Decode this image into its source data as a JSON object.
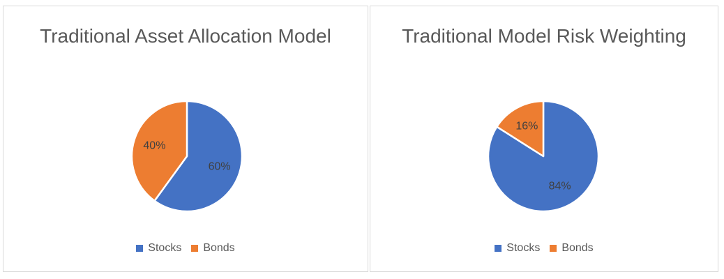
{
  "chart_data": [
    {
      "type": "pie",
      "title": "Traditional Asset Allocation Model",
      "categories": [
        "Stocks",
        "Bonds"
      ],
      "values": [
        60,
        40
      ],
      "data_labels": [
        "60%",
        "40%"
      ],
      "colors": [
        "#4472C4",
        "#ED7D31"
      ],
      "legend": "bottom"
    },
    {
      "type": "pie",
      "title": "Traditional Model Risk Weighting",
      "categories": [
        "Stocks",
        "Bonds"
      ],
      "values": [
        84,
        16
      ],
      "data_labels": [
        "84%",
        "16%"
      ],
      "colors": [
        "#4472C4",
        "#ED7D31"
      ],
      "legend": "bottom"
    }
  ]
}
